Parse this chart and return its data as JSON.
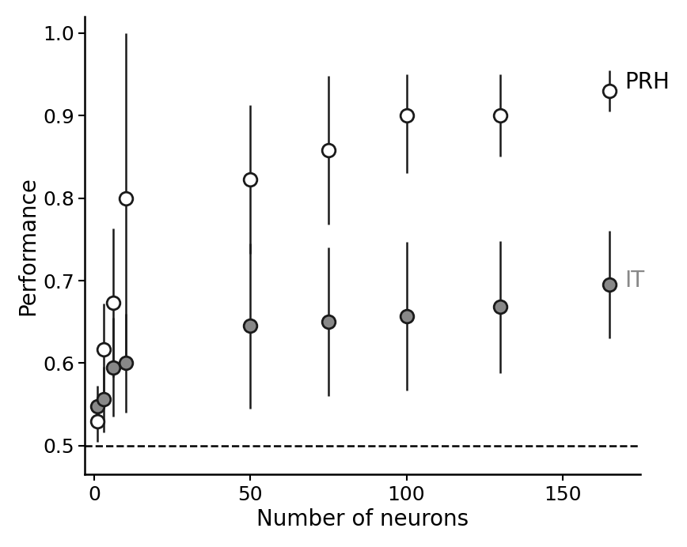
{
  "prh_x": [
    1,
    3,
    6,
    10,
    50,
    75,
    100,
    130,
    165
  ],
  "prh_y": [
    0.53,
    0.617,
    0.673,
    0.8,
    0.823,
    0.858,
    0.9,
    0.9,
    0.93
  ],
  "prh_yerr_low": [
    0.025,
    0.055,
    0.09,
    0.2,
    0.09,
    0.09,
    0.07,
    0.05,
    0.025
  ],
  "prh_yerr_high": [
    0.025,
    0.055,
    0.09,
    0.2,
    0.09,
    0.09,
    0.05,
    0.05,
    0.025
  ],
  "it_x": [
    1,
    3,
    6,
    10,
    50,
    75,
    100,
    130,
    165
  ],
  "it_y": [
    0.548,
    0.556,
    0.595,
    0.6,
    0.645,
    0.65,
    0.657,
    0.668,
    0.695
  ],
  "it_yerr_low": [
    0.025,
    0.04,
    0.06,
    0.06,
    0.1,
    0.09,
    0.09,
    0.08,
    0.065
  ],
  "it_yerr_high": [
    0.025,
    0.04,
    0.06,
    0.06,
    0.1,
    0.09,
    0.09,
    0.08,
    0.065
  ],
  "prh_color": "#1a1a1a",
  "prh_face": "#ffffff",
  "it_color": "#1a1a1a",
  "it_face": "#888888",
  "prh_label": "PRH",
  "it_label": "IT",
  "xlabel": "Number of neurons",
  "ylabel": "Performance",
  "xlim": [
    -3,
    175
  ],
  "ylim": [
    0.465,
    1.02
  ],
  "xticks": [
    0,
    50,
    100,
    150
  ],
  "yticks": [
    0.5,
    0.6,
    0.7,
    0.8,
    0.9,
    1.0
  ],
  "chance_level": 0.5,
  "background_color": "#ffffff",
  "label_fontsize": 20,
  "tick_fontsize": 18,
  "legend_fontsize": 20
}
